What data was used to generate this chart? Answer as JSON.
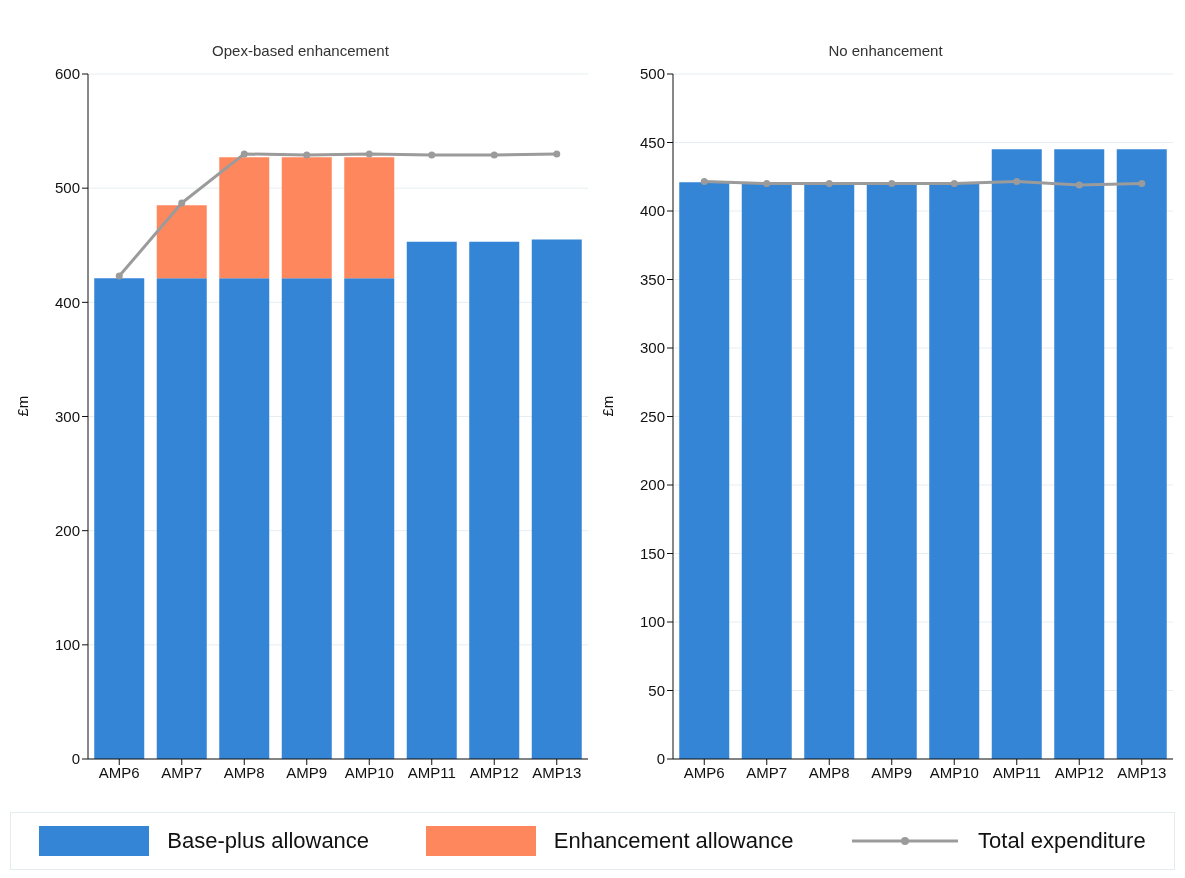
{
  "chart_data": [
    {
      "type": "bar",
      "title": "Opex-based enhancement",
      "ylabel": "£m",
      "categories": [
        "AMP6",
        "AMP7",
        "AMP8",
        "AMP9",
        "AMP10",
        "AMP11",
        "AMP12",
        "AMP13"
      ],
      "stacked": true,
      "series": [
        {
          "name": "Base-plus allowance",
          "color": "#3585d6",
          "values": [
            421,
            421,
            421,
            421,
            421,
            453,
            453,
            455
          ]
        },
        {
          "name": "Enhancement allowance",
          "color": "#ff875e",
          "values": [
            null,
            64,
            106,
            106,
            106,
            null,
            null,
            null
          ]
        },
        {
          "name": "Total expenditure",
          "type": "line",
          "color": "#9b9b9b",
          "values": [
            423,
            487,
            530,
            529,
            530,
            529,
            529,
            530
          ]
        }
      ],
      "ylim": [
        0,
        600
      ],
      "yticks": [
        0,
        100,
        200,
        300,
        400,
        500,
        600
      ],
      "grid": "y",
      "marker": "circle",
      "legend": "bottom"
    },
    {
      "type": "bar",
      "title": "No enhancement",
      "ylabel": "£m",
      "categories": [
        "AMP6",
        "AMP7",
        "AMP8",
        "AMP9",
        "AMP10",
        "AMP11",
        "AMP12",
        "AMP13"
      ],
      "stacked": true,
      "series": [
        {
          "name": "Base-plus allowance",
          "color": "#3585d6",
          "values": [
            421,
            420,
            420,
            420,
            421,
            445,
            445,
            445
          ]
        },
        {
          "name": "Total expenditure",
          "type": "line",
          "color": "#9b9b9b",
          "values": [
            421.5,
            420,
            420,
            420,
            420,
            421.5,
            419,
            420
          ]
        }
      ],
      "ylim": [
        0,
        500
      ],
      "yticks": [
        0,
        50,
        100,
        150,
        200,
        250,
        300,
        350,
        400,
        450,
        500
      ],
      "grid": "y",
      "marker": "circle",
      "legend": "bottom"
    }
  ]
}
